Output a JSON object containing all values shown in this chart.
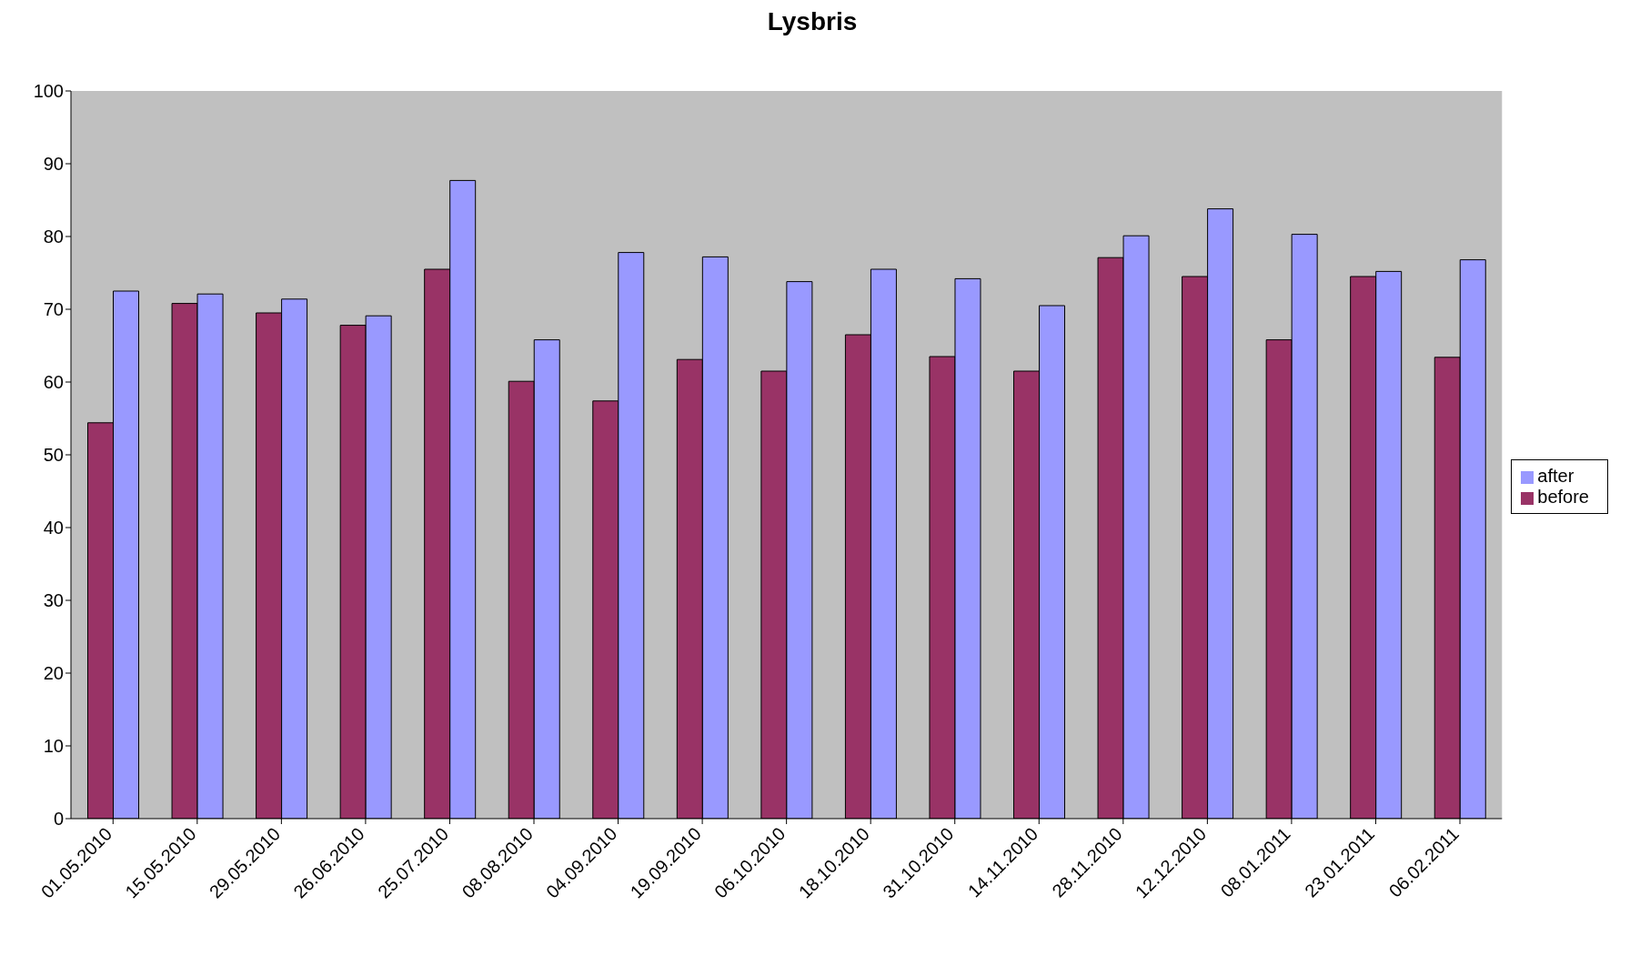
{
  "chart_data": {
    "type": "bar",
    "title": "Lysbris",
    "categories": [
      "01.05.2010",
      "15.05.2010",
      "29.05.2010",
      "26.06.2010",
      "25.07.2010",
      "08.08.2010",
      "04.09.2010",
      "19.09.2010",
      "06.10.2010",
      "18.10.2010",
      "31.10.2010",
      "14.11.2010",
      "28.11.2010",
      "12.12.2010",
      "08.01.2011",
      "23.01.2011",
      "06.02.2011"
    ],
    "series": [
      {
        "name": "before",
        "color": "#993366",
        "values": [
          54.4,
          70.8,
          69.5,
          67.8,
          75.5,
          60.1,
          57.4,
          63.1,
          61.5,
          66.5,
          63.5,
          61.5,
          77.1,
          74.5,
          65.8,
          74.5,
          63.4
        ]
      },
      {
        "name": "after",
        "color": "#9999ff",
        "values": [
          72.5,
          72.1,
          71.4,
          69.1,
          87.7,
          65.8,
          77.8,
          77.2,
          73.8,
          75.5,
          74.2,
          70.5,
          80.1,
          83.8,
          80.3,
          75.2,
          76.8
        ]
      }
    ],
    "ylim": [
      0,
      100
    ],
    "yticks": [
      0,
      10,
      20,
      30,
      40,
      50,
      60,
      70,
      80,
      90,
      100
    ],
    "grid": false,
    "legend": "right"
  }
}
